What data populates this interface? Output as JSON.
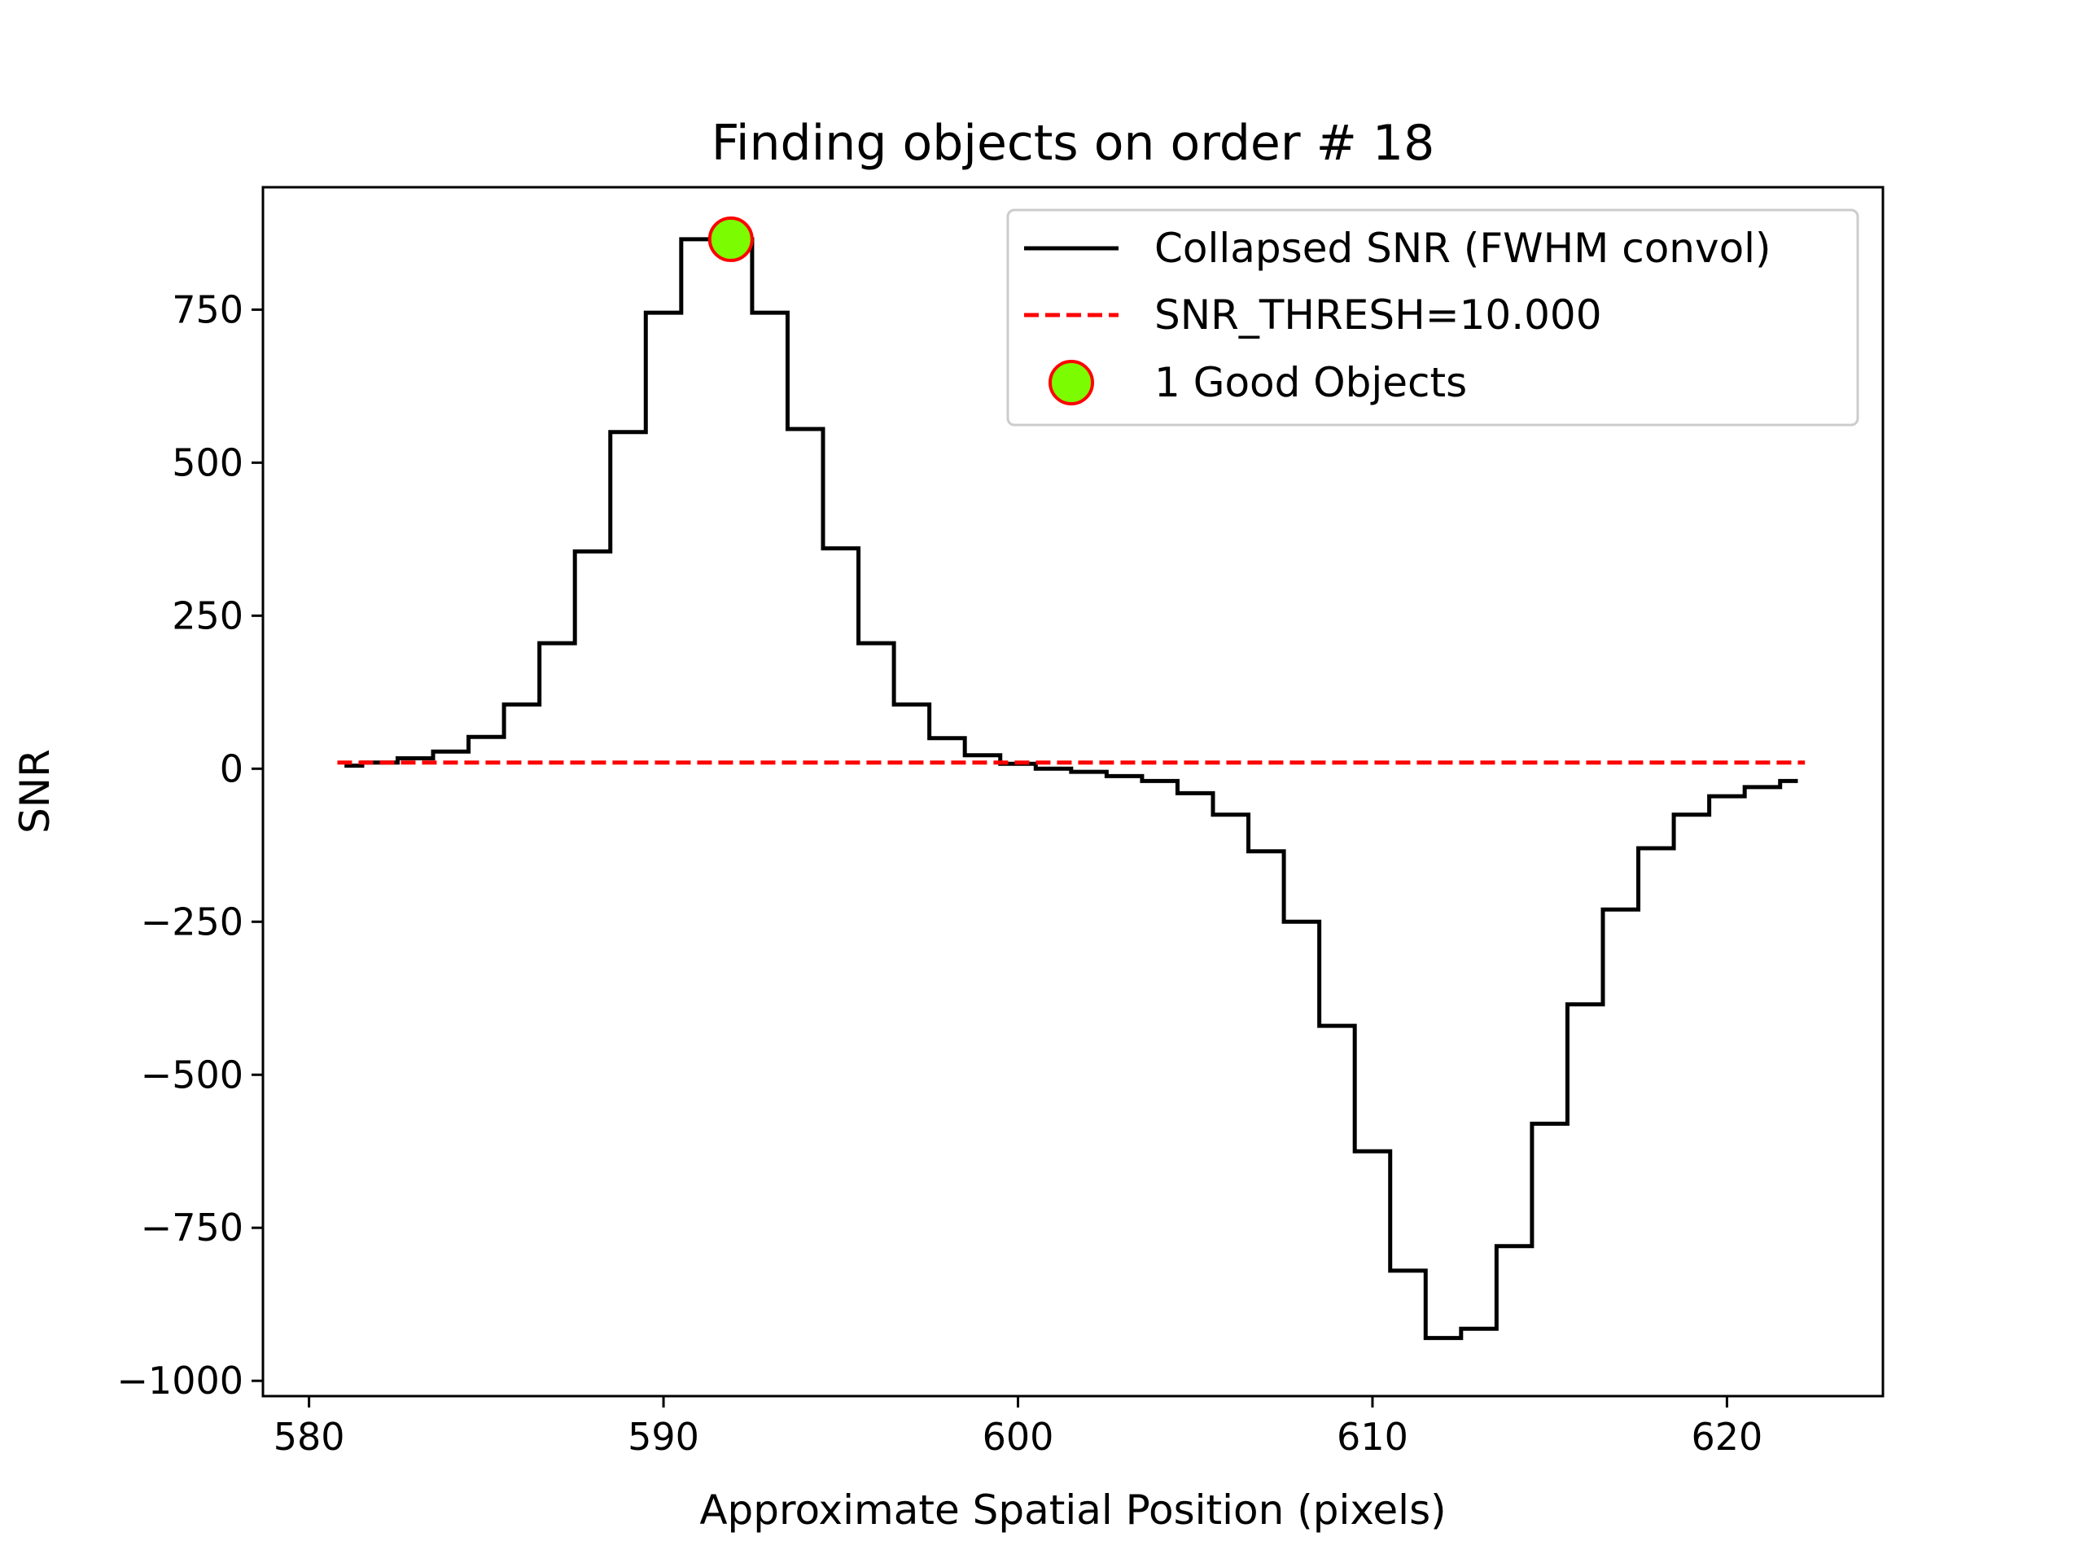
{
  "chart_data": {
    "type": "line",
    "title": "Finding objects on order # 18",
    "xlabel": "Approximate Spatial Position (pixels)",
    "ylabel": "SNR",
    "xlim": [
      578.7,
      624.4
    ],
    "ylim": [
      -1025,
      950
    ],
    "xticks": [
      580,
      590,
      600,
      610,
      620
    ],
    "xtick_labels": [
      "580",
      "590",
      "600",
      "610",
      "620"
    ],
    "yticks": [
      -1000,
      -750,
      -500,
      -250,
      0,
      250,
      500,
      750
    ],
    "ytick_labels": [
      "−1000",
      "−750",
      "−500",
      "−250",
      "0",
      "250",
      "500",
      "750"
    ],
    "grid": false,
    "legend_position": "top-right",
    "series": [
      {
        "name": "Collapsed SNR (FWHM convol)",
        "style": "steps-mid",
        "color": "#000000",
        "x": [
          581,
          582,
          583,
          584,
          585,
          586,
          587,
          588,
          589,
          590,
          591,
          592,
          593,
          594,
          595,
          596,
          597,
          598,
          599,
          600,
          601,
          602,
          603,
          604,
          605,
          606,
          607,
          608,
          609,
          610,
          611,
          612,
          613,
          614,
          615,
          616,
          617,
          618,
          619,
          620,
          621,
          622
        ],
        "y": [
          5,
          10,
          17,
          28,
          52,
          105,
          205,
          355,
          550,
          745,
          865,
          865,
          745,
          555,
          360,
          205,
          105,
          50,
          22,
          8,
          0,
          -5,
          -12,
          -20,
          -40,
          -75,
          -135,
          -250,
          -420,
          -625,
          -820,
          -930,
          -915,
          -780,
          -580,
          -385,
          -230,
          -130,
          -75,
          -45,
          -30,
          -20
        ]
      },
      {
        "name": "SNR_THRESH=10.000",
        "style": "dashed",
        "color": "#ff0000",
        "x": [
          580.8,
          622.2
        ],
        "y": [
          10,
          10
        ]
      }
    ],
    "markers": [
      {
        "name": "1 Good Objects",
        "color": "#7cfc00",
        "edgecolor": "#ff0000",
        "points": [
          {
            "x": 591.9,
            "y": 865
          }
        ]
      }
    ]
  }
}
